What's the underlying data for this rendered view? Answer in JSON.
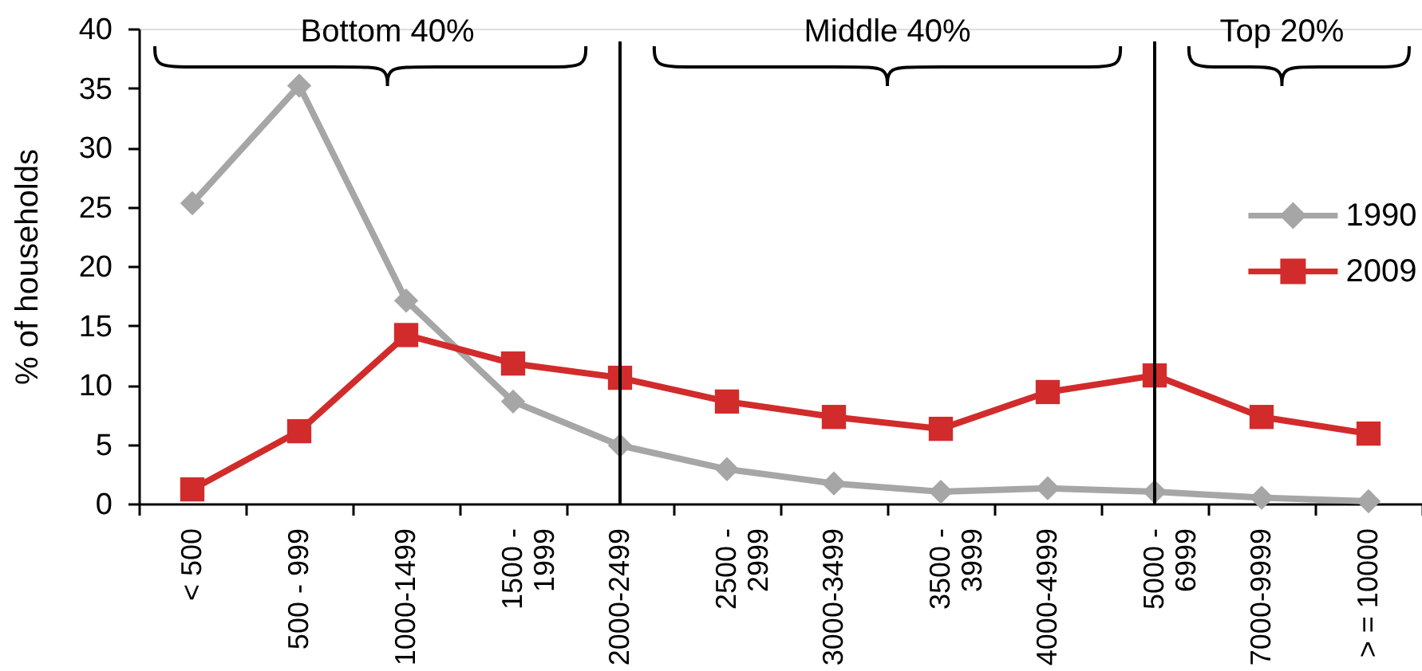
{
  "chart_data": {
    "type": "line",
    "ylabel": "% of households",
    "categories": [
      "< 500",
      "500 - 999",
      "1000-1499",
      "1500 - 1999",
      "2000-2499",
      "2500 - 2999",
      "3000-3499",
      "3500 - 3999",
      "4000-4999",
      "5000 - 6999",
      "7000-9999",
      "> = 10000"
    ],
    "series": [
      {
        "name": "1990",
        "color": "#a6a6a6",
        "marker": "diamond",
        "values": [
          25.3,
          35.2,
          17.1,
          8.6,
          4.9,
          2.9,
          1.7,
          1.0,
          1.3,
          1.0,
          0.5,
          0.2
        ]
      },
      {
        "name": "2009",
        "color": "#d22b2b",
        "marker": "square",
        "values": [
          1.2,
          6.1,
          14.2,
          11.8,
          10.6,
          8.6,
          7.3,
          6.3,
          9.4,
          10.8,
          7.3,
          5.9
        ]
      }
    ],
    "ylim": [
      0,
      40
    ],
    "yticks": [
      0,
      5,
      10,
      15,
      20,
      25,
      30,
      35,
      40
    ],
    "legend": "right",
    "ref_lines": [
      {
        "axis": "x",
        "value": "2000-2499",
        "color": "#000000"
      },
      {
        "axis": "x",
        "value": "5000 - 6999",
        "color": "#000000"
      }
    ],
    "annotations": [
      "Bottom 40%",
      "Middle 40%",
      "Top 20%"
    ]
  }
}
